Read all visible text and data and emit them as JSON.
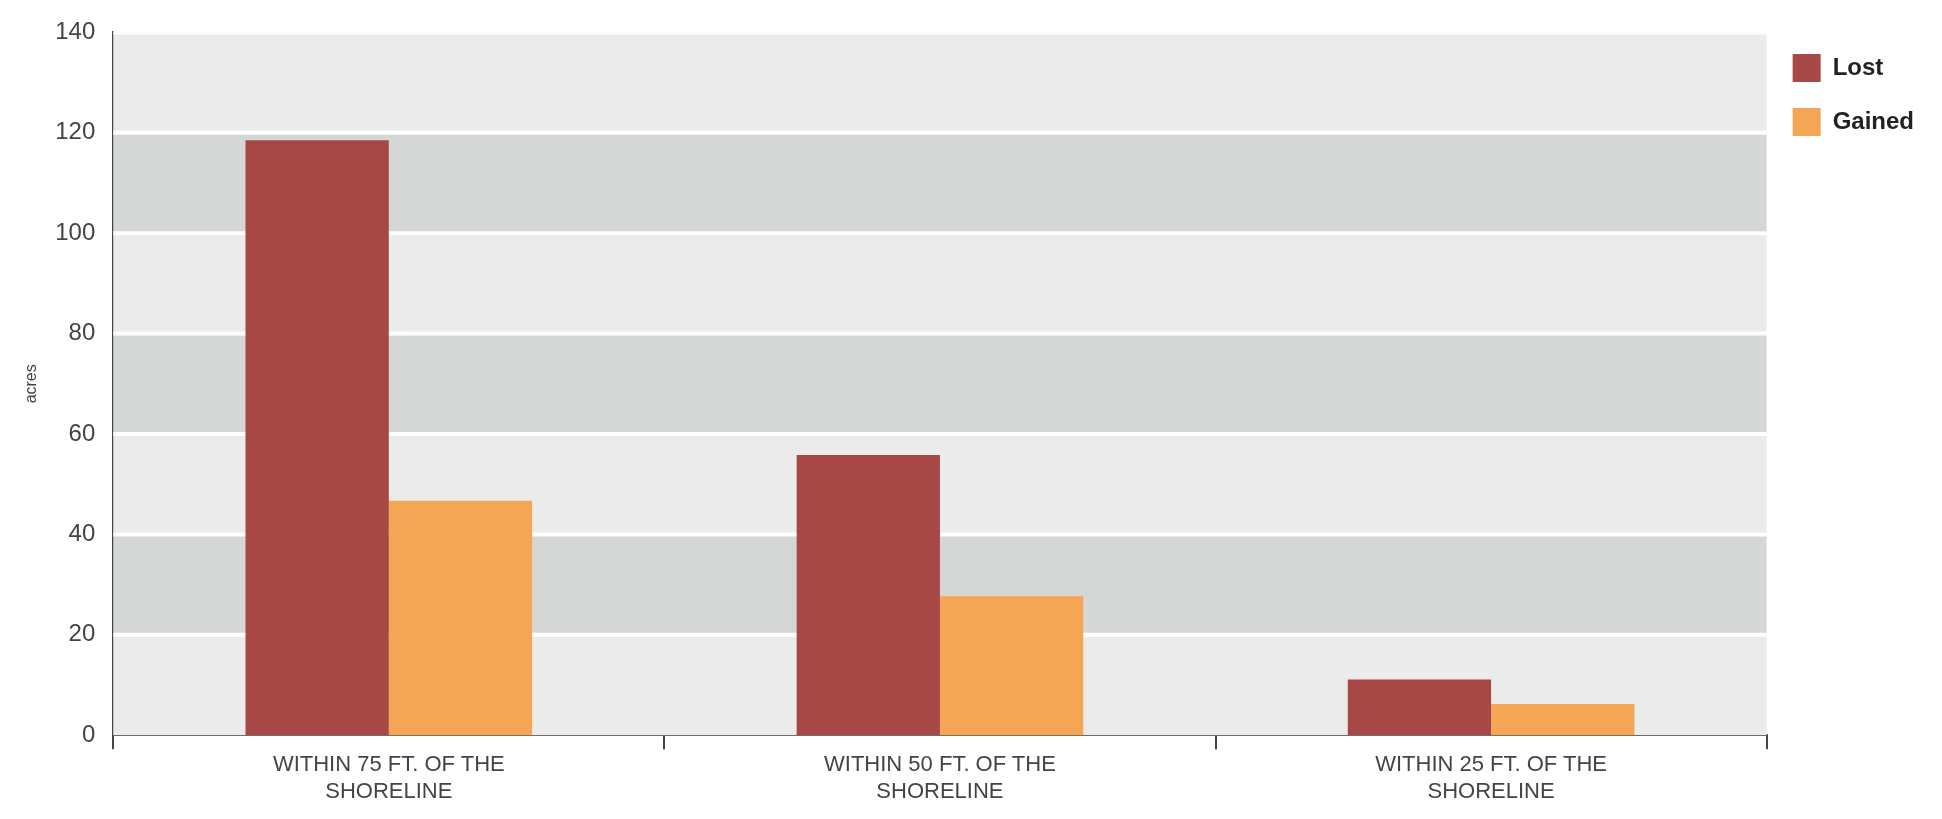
{
  "chart_data": {
    "type": "bar",
    "ylabel": "acres",
    "categories": [
      "WITHIN 75 FT. OF THE SHORELINE",
      "WITHIN 50 FT. OF THE SHORELINE",
      "WITHIN 25 FT. OF THE SHORELINE"
    ],
    "series": [
      {
        "name": "Lost",
        "color": "#a84846",
        "values": [
          118.5,
          55.8,
          11.1
        ]
      },
      {
        "name": "Gained",
        "color": "#f5a654",
        "values": [
          46.7,
          27.7,
          6.2
        ]
      }
    ],
    "ylim": [
      0,
      140
    ],
    "yticks": [
      0,
      20,
      40,
      60,
      80,
      100,
      120,
      140
    ],
    "grid": "y",
    "legend": "top right"
  }
}
